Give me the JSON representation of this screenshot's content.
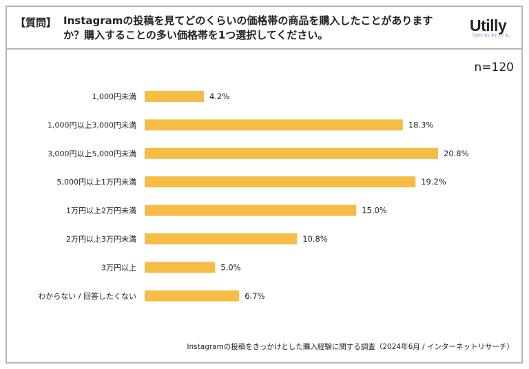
{
  "header": {
    "question_label": "【質問】",
    "question_text": "Instagramの投稿を見てどのくらいの価格帯の商品を購入したことがありますか？購入することの多い価格帯を1つ選択してください。",
    "logo": "Utilly",
    "logo_tagline": "「はかどる」をとどける。"
  },
  "sample_size": "n=120",
  "source": "Instagramの投稿をきっかけとした購入経験に関する調査（2024年6月 / インターネットリサーチ）",
  "colors": {
    "bar": "#f5bd45"
  },
  "chart_data": {
    "type": "bar",
    "orientation": "horizontal",
    "categories": [
      "1,000円未満",
      "1,000円以上3,000円未満",
      "3,000円以上5,000円未満",
      "5,000円以上1万円未満",
      "1万円以上2万円未満",
      "2万円以上3万円未満",
      "3万円以上",
      "わからない / 回答したくない"
    ],
    "values": [
      4.2,
      18.3,
      20.8,
      19.2,
      15.0,
      10.8,
      5.0,
      6.7
    ],
    "labels": [
      "4.2%",
      "18.3%",
      "20.8%",
      "19.2%",
      "15.0%",
      "10.8%",
      "5.0%",
      "6.7%"
    ],
    "unit": "%",
    "xlim": [
      0,
      20.8
    ],
    "grid": false,
    "legend": "none"
  }
}
